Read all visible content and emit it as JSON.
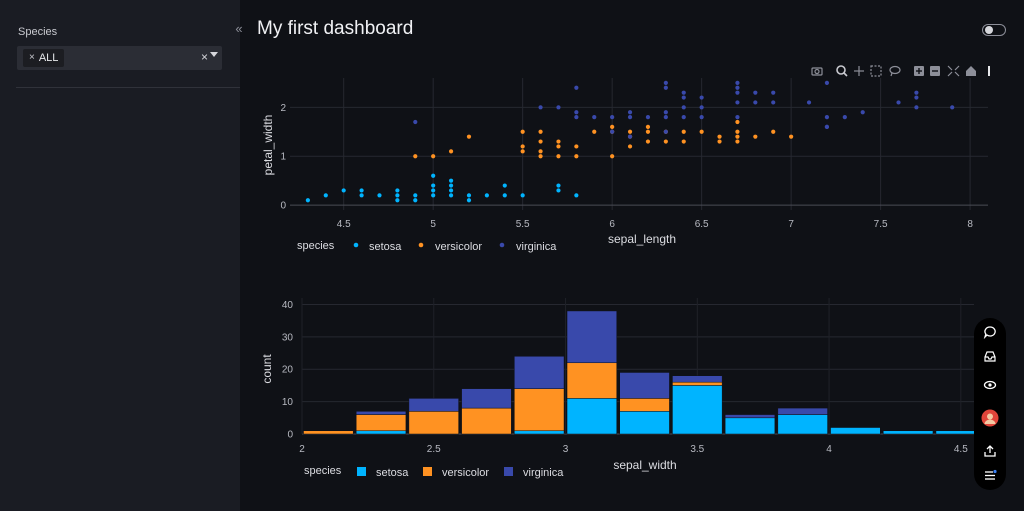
{
  "sidebar": {
    "filter_label": "Species",
    "selected_chip": "ALL",
    "chip_remove": "×",
    "clear_symbol": "×",
    "collapse_symbol": "«"
  },
  "header": {
    "title": "My first dashboard"
  },
  "colors": {
    "setosa": "#00b4ff",
    "versicolor": "#ff9222",
    "virginica": "#3949ab"
  },
  "chart_data": [
    {
      "type": "scatter",
      "title": "",
      "xlabel": "sepal_length",
      "ylabel": "petal_width",
      "xlim": [
        4.2,
        8.1
      ],
      "ylim": [
        -0.1,
        2.6
      ],
      "xticks": [
        "4.5",
        "5",
        "5.5",
        "6",
        "6.5",
        "7",
        "7.5",
        "8"
      ],
      "yticks": [
        "0",
        "1",
        "2"
      ],
      "legend_title": "species",
      "series": [
        {
          "name": "setosa",
          "points": [
            [
              4.3,
              0.1
            ],
            [
              4.4,
              0.2
            ],
            [
              4.5,
              0.3
            ],
            [
              4.6,
              0.2
            ],
            [
              4.6,
              0.3
            ],
            [
              4.7,
              0.2
            ],
            [
              4.8,
              0.1
            ],
            [
              4.8,
              0.2
            ],
            [
              4.8,
              0.3
            ],
            [
              4.9,
              0.1
            ],
            [
              4.9,
              0.2
            ],
            [
              5.0,
              0.2
            ],
            [
              5.0,
              0.3
            ],
            [
              5.0,
              0.4
            ],
            [
              5.0,
              0.6
            ],
            [
              5.1,
              0.2
            ],
            [
              5.1,
              0.3
            ],
            [
              5.1,
              0.4
            ],
            [
              5.1,
              0.5
            ],
            [
              5.2,
              0.1
            ],
            [
              5.2,
              0.2
            ],
            [
              5.3,
              0.2
            ],
            [
              5.4,
              0.2
            ],
            [
              5.4,
              0.4
            ],
            [
              5.5,
              0.2
            ],
            [
              5.7,
              0.3
            ],
            [
              5.7,
              0.4
            ],
            [
              5.8,
              0.2
            ]
          ]
        },
        {
          "name": "versicolor",
          "points": [
            [
              4.9,
              1.0
            ],
            [
              5.0,
              1.0
            ],
            [
              5.1,
              1.1
            ],
            [
              5.2,
              1.4
            ],
            [
              5.5,
              1.5
            ],
            [
              5.6,
              1.0
            ],
            [
              5.6,
              1.1
            ],
            [
              5.6,
              1.3
            ],
            [
              5.7,
              1.0
            ],
            [
              5.7,
              1.2
            ],
            [
              5.7,
              1.3
            ],
            [
              5.8,
              1.0
            ],
            [
              5.8,
              1.2
            ],
            [
              5.9,
              1.5
            ],
            [
              6.0,
              1.0
            ],
            [
              6.0,
              1.5
            ],
            [
              6.0,
              1.6
            ],
            [
              6.1,
              1.2
            ],
            [
              6.1,
              1.4
            ],
            [
              6.2,
              1.3
            ],
            [
              6.2,
              1.5
            ],
            [
              6.3,
              1.3
            ],
            [
              6.3,
              1.5
            ],
            [
              6.4,
              1.3
            ],
            [
              6.4,
              1.5
            ],
            [
              6.5,
              1.5
            ],
            [
              6.6,
              1.3
            ],
            [
              6.6,
              1.4
            ],
            [
              6.7,
              1.4
            ],
            [
              6.7,
              1.5
            ],
            [
              6.7,
              1.7
            ],
            [
              6.8,
              1.4
            ],
            [
              6.9,
              1.5
            ],
            [
              7.0,
              1.4
            ],
            [
              5.5,
              1.1
            ],
            [
              5.5,
              1.2
            ],
            [
              5.6,
              1.5
            ],
            [
              6.1,
              1.5
            ],
            [
              6.2,
              1.6
            ],
            [
              6.7,
              1.3
            ]
          ]
        },
        {
          "name": "virginica",
          "points": [
            [
              4.9,
              1.7
            ],
            [
              5.6,
              2.0
            ],
            [
              5.7,
              2.0
            ],
            [
              5.8,
              1.8
            ],
            [
              5.8,
              1.9
            ],
            [
              5.8,
              2.4
            ],
            [
              5.9,
              1.8
            ],
            [
              6.0,
              1.8
            ],
            [
              6.1,
              1.8
            ],
            [
              6.1,
              1.9
            ],
            [
              6.2,
              1.8
            ],
            [
              6.3,
              1.8
            ],
            [
              6.3,
              1.9
            ],
            [
              6.3,
              2.4
            ],
            [
              6.3,
              2.5
            ],
            [
              6.4,
              1.8
            ],
            [
              6.4,
              2.0
            ],
            [
              6.4,
              2.2
            ],
            [
              6.4,
              2.3
            ],
            [
              6.5,
              1.8
            ],
            [
              6.5,
              2.0
            ],
            [
              6.5,
              2.2
            ],
            [
              6.7,
              1.8
            ],
            [
              6.7,
              2.1
            ],
            [
              6.7,
              2.3
            ],
            [
              6.7,
              2.4
            ],
            [
              6.7,
              2.5
            ],
            [
              6.8,
              2.1
            ],
            [
              6.8,
              2.3
            ],
            [
              6.9,
              2.1
            ],
            [
              6.9,
              2.3
            ],
            [
              7.1,
              2.1
            ],
            [
              7.2,
              1.6
            ],
            [
              7.2,
              1.8
            ],
            [
              7.2,
              2.5
            ],
            [
              7.3,
              1.8
            ],
            [
              7.4,
              1.9
            ],
            [
              7.6,
              2.1
            ],
            [
              7.7,
              2.0
            ],
            [
              7.7,
              2.2
            ],
            [
              7.7,
              2.3
            ],
            [
              7.9,
              2.0
            ],
            [
              6.0,
              1.5
            ],
            [
              6.1,
              1.4
            ],
            [
              6.3,
              1.5
            ],
            [
              7.2,
              1.6
            ]
          ]
        }
      ]
    },
    {
      "type": "bar",
      "stacked": true,
      "title": "",
      "xlabel": "sepal_width",
      "ylabel": "count",
      "xlim": [
        2.0,
        4.55
      ],
      "ylim": [
        0,
        42
      ],
      "xticks": [
        "2",
        "2.5",
        "3",
        "3.5",
        "4",
        "4.5"
      ],
      "yticks": [
        "0",
        "10",
        "20",
        "30",
        "40"
      ],
      "bin_width": 0.2,
      "bin_starts": [
        2.0,
        2.2,
        2.4,
        2.6,
        2.8,
        3.0,
        3.2,
        3.4,
        3.6,
        3.8,
        4.0,
        4.2,
        4.4
      ],
      "legend_title": "species",
      "series": [
        {
          "name": "setosa",
          "values": [
            0,
            1,
            0,
            0,
            1,
            11,
            7,
            15,
            5,
            6,
            2,
            1,
            1
          ]
        },
        {
          "name": "versicolor",
          "values": [
            1,
            5,
            7,
            8,
            13,
            11,
            4,
            1,
            0,
            0,
            0,
            0,
            0
          ]
        },
        {
          "name": "virginica",
          "values": [
            0,
            1,
            4,
            6,
            10,
            16,
            8,
            2,
            1,
            2,
            0,
            0,
            0
          ]
        }
      ]
    }
  ]
}
